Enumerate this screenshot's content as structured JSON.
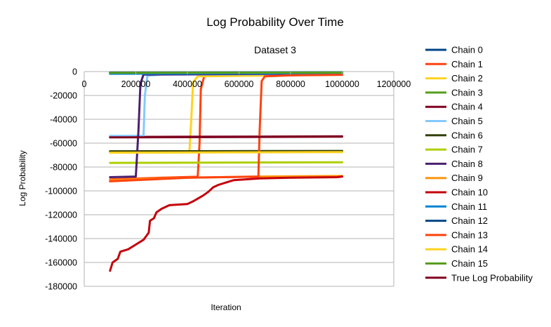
{
  "chart_data": {
    "type": "line",
    "title": "Log Probability Over Time",
    "subtitle": "Dataset 3",
    "xlabel": "Iteration",
    "ylabel": "Log Probability",
    "xlim": [
      0,
      1200000
    ],
    "ylim": [
      -180000,
      0
    ],
    "x_ticks": [
      "0",
      "200000",
      "400000",
      "600000",
      "800000",
      "1000000",
      "1200000"
    ],
    "y_ticks": [
      "0",
      "-20000",
      "-40000",
      "-60000",
      "-80000",
      "-100000",
      "-120000",
      "-140000",
      "-160000",
      "-180000"
    ],
    "grid": "horizontal",
    "legend_position": "right",
    "series": [
      {
        "name": "Chain 0",
        "color": "#004586",
        "points": [
          [
            100000,
            -1200
          ],
          [
            1000000,
            -1000
          ]
        ]
      },
      {
        "name": "Chain 1",
        "color": "#ff420e",
        "points": [
          [
            100000,
            -90500
          ],
          [
            300000,
            -89000
          ],
          [
            440000,
            -88200
          ],
          [
            447000,
            -60000
          ],
          [
            452000,
            -15000
          ],
          [
            465000,
            -3800
          ],
          [
            600000,
            -3100
          ],
          [
            1000000,
            -2600
          ]
        ]
      },
      {
        "name": "Chain 2",
        "color": "#ffd320",
        "points": [
          [
            100000,
            -67500
          ],
          [
            408000,
            -67000
          ],
          [
            415000,
            -40000
          ],
          [
            422000,
            -9000
          ],
          [
            440000,
            -4000
          ],
          [
            1000000,
            -2500
          ]
        ]
      },
      {
        "name": "Chain 3",
        "color": "#579d1c",
        "points": [
          [
            100000,
            -1500
          ],
          [
            1000000,
            -1200
          ]
        ]
      },
      {
        "name": "Chain 4",
        "color": "#7e0021",
        "points": [
          [
            100000,
            -54800
          ],
          [
            1000000,
            -54300
          ]
        ]
      },
      {
        "name": "Chain 5",
        "color": "#83caff",
        "points": [
          [
            100000,
            -54000
          ],
          [
            230000,
            -53800
          ],
          [
            235000,
            -20000
          ],
          [
            245000,
            -3500
          ],
          [
            300000,
            -2500
          ],
          [
            1000000,
            -1800
          ]
        ]
      },
      {
        "name": "Chain 6",
        "color": "#314004",
        "points": [
          [
            100000,
            -66800
          ],
          [
            1000000,
            -66500
          ]
        ]
      },
      {
        "name": "Chain 7",
        "color": "#aecf00",
        "points": [
          [
            100000,
            -76500
          ],
          [
            1000000,
            -76000
          ]
        ]
      },
      {
        "name": "Chain 8",
        "color": "#4b1f6f",
        "points": [
          [
            100000,
            -88500
          ],
          [
            200000,
            -88000
          ],
          [
            210000,
            -50000
          ],
          [
            218000,
            -10000
          ],
          [
            230000,
            -2500
          ],
          [
            1000000,
            -1500
          ]
        ]
      },
      {
        "name": "Chain 9",
        "color": "#ff950e",
        "points": [
          [
            100000,
            -91000
          ],
          [
            400000,
            -89000
          ],
          [
            680000,
            -88000
          ],
          [
            1000000,
            -87500
          ]
        ]
      },
      {
        "name": "Chain 10",
        "color": "#c5000b",
        "points": [
          [
            100000,
            -167000
          ],
          [
            110000,
            -160000
          ],
          [
            130000,
            -157000
          ],
          [
            140000,
            -151000
          ],
          [
            170000,
            -149000
          ],
          [
            200000,
            -145000
          ],
          [
            230000,
            -141000
          ],
          [
            250000,
            -135000
          ],
          [
            255000,
            -125000
          ],
          [
            270000,
            -123000
          ],
          [
            280000,
            -118000
          ],
          [
            300000,
            -115000
          ],
          [
            330000,
            -112000
          ],
          [
            400000,
            -111000
          ],
          [
            420000,
            -109000
          ],
          [
            460000,
            -104000
          ],
          [
            480000,
            -101000
          ],
          [
            500000,
            -97000
          ],
          [
            520000,
            -95000
          ],
          [
            550000,
            -93000
          ],
          [
            580000,
            -91000
          ],
          [
            620000,
            -90500
          ],
          [
            680000,
            -89500
          ],
          [
            800000,
            -89000
          ],
          [
            980000,
            -88500
          ],
          [
            1000000,
            -88000
          ]
        ]
      },
      {
        "name": "Chain 11",
        "color": "#0084d1",
        "points": [
          [
            100000,
            -1800
          ],
          [
            1000000,
            -1300
          ]
        ]
      },
      {
        "name": "Chain 12",
        "color": "#004586",
        "points": [
          [
            100000,
            -800
          ],
          [
            1000000,
            -600
          ]
        ]
      },
      {
        "name": "Chain 13",
        "color": "#ff420e",
        "points": [
          [
            100000,
            -92000
          ],
          [
            400000,
            -89000
          ],
          [
            675000,
            -88000
          ],
          [
            680000,
            -50000
          ],
          [
            688000,
            -8000
          ],
          [
            700000,
            -4000
          ],
          [
            800000,
            -3200
          ],
          [
            1000000,
            -2700
          ]
        ]
      },
      {
        "name": "Chain 14",
        "color": "#ffd320",
        "points": [
          [
            100000,
            -68000
          ],
          [
            1000000,
            -67500
          ]
        ]
      },
      {
        "name": "Chain 15",
        "color": "#579d1c",
        "points": [
          [
            100000,
            -1000
          ],
          [
            1000000,
            -800
          ]
        ]
      },
      {
        "name": "True Log Probability",
        "color": "#7e0021",
        "points": [
          [
            100000,
            -55200
          ],
          [
            1000000,
            -54600
          ]
        ]
      }
    ]
  }
}
